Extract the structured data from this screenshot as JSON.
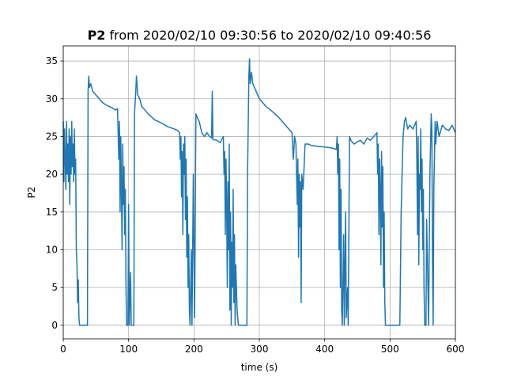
{
  "chart_data": {
    "type": "line",
    "title": [
      "P2",
      "from 2020/02/10 09:30:56 to 2020/02/10 09:40:56"
    ],
    "xlabel": "time (s)",
    "ylabel": "P2",
    "x": [
      0,
      1,
      2,
      3,
      4,
      5,
      6,
      7,
      8,
      9,
      10,
      11,
      12,
      13,
      14,
      15,
      16,
      17,
      18,
      19,
      20,
      21,
      22,
      23,
      24,
      25,
      37,
      38,
      39,
      40,
      42,
      45,
      50,
      55,
      60,
      65,
      70,
      75,
      80,
      83,
      85,
      86,
      87,
      88,
      89,
      90,
      91,
      92,
      93,
      94,
      95,
      96,
      97,
      99,
      100,
      101,
      103,
      104,
      108,
      109,
      111,
      112,
      114,
      117,
      120,
      125,
      130,
      140,
      150,
      160,
      170,
      175,
      178,
      179,
      180,
      181,
      182,
      183,
      184,
      185,
      186,
      187,
      188,
      189,
      190,
      191,
      192,
      193,
      194,
      196,
      197,
      199,
      201,
      203,
      205,
      208,
      212,
      216,
      220,
      224,
      227,
      228,
      229,
      235,
      240,
      245,
      246,
      247,
      248,
      249,
      250,
      251,
      252,
      253,
      254,
      255,
      256,
      257,
      258,
      259,
      260,
      261,
      262,
      263,
      264,
      266,
      268,
      281,
      282,
      284,
      285,
      286,
      288,
      290,
      295,
      300,
      310,
      320,
      330,
      340,
      345,
      350,
      352,
      354,
      356,
      358,
      359,
      360,
      361,
      362,
      363,
      364,
      365,
      367,
      369,
      370,
      375,
      380,
      390,
      400,
      410,
      418,
      419,
      420,
      421,
      422,
      423,
      424,
      425,
      426,
      427,
      429,
      430,
      432,
      433,
      435,
      436,
      438,
      440,
      445,
      450,
      455,
      460,
      465,
      470,
      475,
      480,
      481,
      482,
      483,
      484,
      485,
      486,
      487,
      488,
      489,
      490,
      491,
      492,
      493,
      515,
      517,
      519,
      520,
      522,
      524,
      527,
      530,
      535,
      540,
      541,
      542,
      543,
      544,
      545,
      546,
      547,
      548,
      549,
      550,
      551,
      552,
      553,
      555,
      556,
      558,
      559,
      561,
      563,
      564,
      565,
      566,
      567,
      569,
      570,
      572,
      575,
      580,
      585,
      590,
      595,
      600
    ],
    "series": [
      {
        "name": "P2",
        "color": "#1f77b4",
        "values": [
          27,
          19,
          26,
          22,
          18,
          27,
          20,
          24,
          19,
          26,
          16,
          25,
          20,
          27,
          21,
          24,
          19,
          26,
          20,
          22,
          10,
          8,
          3,
          6,
          1,
          0,
          0,
          31,
          33,
          31.5,
          32,
          31,
          30.5,
          30,
          29.5,
          29.2,
          29,
          28.8,
          28.5,
          28.7,
          22,
          27,
          15,
          25,
          18,
          10,
          24,
          16,
          21,
          12,
          18,
          5,
          0,
          0,
          16,
          0,
          7,
          0,
          0,
          28,
          31,
          33,
          30.5,
          30,
          29,
          28.5,
          28,
          27.2,
          26.8,
          26.3,
          26,
          25.8,
          25.5,
          22,
          25,
          17,
          23,
          12,
          24,
          20,
          25,
          14,
          22,
          9,
          17,
          5,
          12,
          2,
          0,
          10,
          0,
          20,
          1,
          28,
          27.5,
          27,
          25.5,
          25,
          25.5,
          25,
          24.8,
          31,
          24.6,
          24.5,
          24.2,
          25,
          20,
          23,
          12,
          22,
          16,
          5,
          19,
          10,
          24,
          2,
          15,
          0,
          11,
          5,
          18,
          3,
          12,
          0,
          8,
          2,
          0,
          0,
          20,
          33,
          35.3,
          32,
          33.5,
          32,
          31,
          30,
          29,
          28.3,
          27.5,
          26.5,
          26,
          25.5,
          22,
          25,
          24,
          16,
          22,
          9,
          20,
          13,
          19,
          3,
          20,
          18,
          22,
          24,
          24,
          23.8,
          23.7,
          23.6,
          23.5,
          23.3,
          25,
          20,
          24,
          10,
          22,
          5,
          18,
          2,
          0,
          12,
          0,
          15,
          1,
          5,
          0,
          25,
          24.5,
          24,
          24.3,
          24.5,
          24,
          24.8,
          24.5,
          25,
          25.5,
          20,
          24,
          12,
          22,
          18,
          8,
          23,
          13,
          21,
          5,
          15,
          3,
          0,
          0,
          15,
          22,
          25,
          27,
          27.5,
          26,
          26.5,
          26,
          27,
          22,
          12,
          25,
          8,
          20,
          18,
          26,
          15,
          22,
          10,
          18,
          5,
          0,
          0,
          14,
          5,
          0,
          20,
          28,
          26,
          8,
          0,
          18,
          27,
          24,
          27,
          25,
          26.5,
          26,
          25.8,
          26.5,
          25.5
        ]
      }
    ],
    "xlim": [
      0,
      600
    ],
    "ylim": [
      -1.8,
      37
    ],
    "xticks": [
      0,
      100,
      200,
      300,
      400,
      500,
      600
    ],
    "yticks": [
      0,
      5,
      10,
      15,
      20,
      25,
      30,
      35
    ],
    "grid": true
  }
}
